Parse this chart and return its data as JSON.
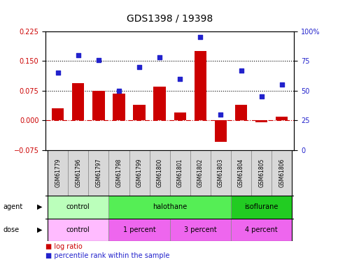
{
  "title": "GDS1398 / 19398",
  "samples": [
    "GSM61779",
    "GSM61796",
    "GSM61797",
    "GSM61798",
    "GSM61799",
    "GSM61800",
    "GSM61801",
    "GSM61802",
    "GSM61803",
    "GSM61804",
    "GSM61805",
    "GSM61806"
  ],
  "log_ratios": [
    0.03,
    0.095,
    0.075,
    0.068,
    0.04,
    0.085,
    0.02,
    0.175,
    -0.055,
    0.04,
    -0.005,
    0.01
  ],
  "percentile_ranks": [
    65,
    80,
    76,
    50,
    70,
    78,
    60,
    95,
    30,
    67,
    45,
    55
  ],
  "ylim_left": [
    -0.075,
    0.225
  ],
  "ylim_right": [
    0,
    100
  ],
  "yticks_left": [
    -0.075,
    0,
    0.075,
    0.15,
    0.225
  ],
  "yticks_right": [
    0,
    25,
    50,
    75,
    100
  ],
  "hlines": [
    0.075,
    0.15
  ],
  "bar_color": "#cc0000",
  "dot_color": "#2222cc",
  "zero_line_color": "#cc0000",
  "agent_groups": [
    {
      "label": "control",
      "start": 0,
      "end": 3,
      "color": "#bbffbb"
    },
    {
      "label": "halothane",
      "start": 3,
      "end": 9,
      "color": "#55ee55"
    },
    {
      "label": "isoflurane",
      "start": 9,
      "end": 12,
      "color": "#22cc22"
    }
  ],
  "dose_groups": [
    {
      "label": "control",
      "start": 0,
      "end": 3,
      "color": "#ffbbff"
    },
    {
      "label": "1 percent",
      "start": 3,
      "end": 6,
      "color": "#ee66ee"
    },
    {
      "label": "3 percent",
      "start": 6,
      "end": 9,
      "color": "#ee66ee"
    },
    {
      "label": "4 percent",
      "start": 9,
      "end": 12,
      "color": "#ee66ee"
    }
  ],
  "agent_label": "agent",
  "dose_label": "dose",
  "background_color": "#ffffff",
  "tick_label_color_left": "#cc0000",
  "tick_label_color_right": "#2222cc",
  "title_fontsize": 10,
  "bar_label_fontsize": 7,
  "sample_fontsize": 5.5,
  "group_fontsize": 7,
  "legend_fontsize": 7
}
